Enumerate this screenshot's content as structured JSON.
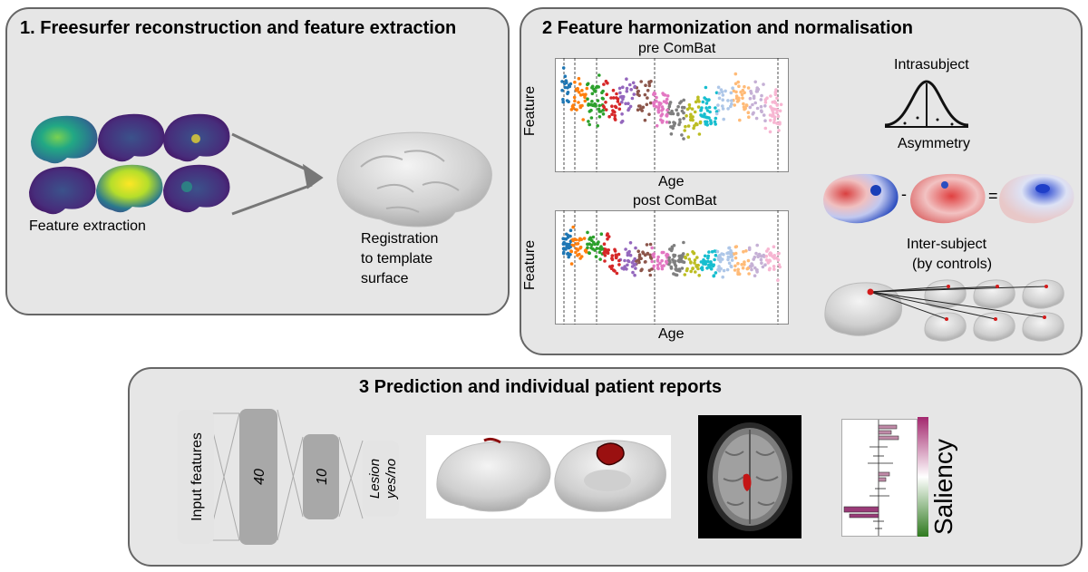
{
  "panel1": {
    "title": "1. Freesurfer reconstruction and feature extraction",
    "feature_extraction_label": "Feature extraction",
    "registration_label": [
      "Registration",
      "to template",
      "surface"
    ]
  },
  "panel2": {
    "title": "2 Feature harmonization and normalisation",
    "pre_title": "pre ComBat",
    "post_title": "post ComBat",
    "ylabel": "Feature",
    "xlabel": "Age",
    "intrasubject": "Intrasubject",
    "asymmetry": "Asymmetry",
    "minus": "-",
    "equals": "=",
    "intersubject": [
      "Inter-subject",
      "(by controls)"
    ]
  },
  "panel3": {
    "title": "3 Prediction and individual patient reports",
    "layers": [
      "Input features",
      "40",
      "10",
      "Lesion",
      "yes/no"
    ],
    "saliency_label": "Saliency"
  },
  "colors": {
    "panel_bg": "#e6e6e6",
    "panel_border": "#666666",
    "saliency_high": "#a3286e",
    "saliency_low": "#2f7a1f"
  }
}
